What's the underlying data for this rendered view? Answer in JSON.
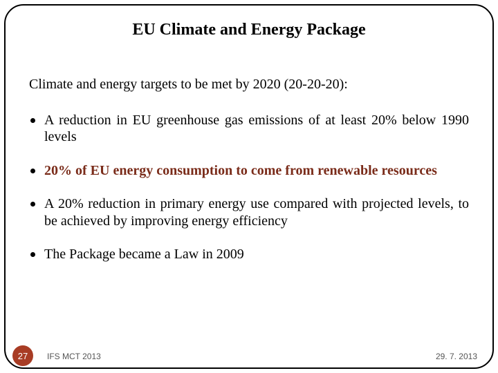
{
  "title": "EU Climate and Energy Package",
  "intro": "Climate and energy targets to be met by 2020 (20-20-20):",
  "bullets": [
    {
      "text": "A reduction in EU greenhouse gas emissions of at least 20% below 1990 levels",
      "emphasis": false
    },
    {
      "text": "20% of EU energy consumption to come from renewable resources",
      "emphasis": true
    },
    {
      "text": "A 20% reduction in primary energy use compared with projected levels, to be achieved by improving energy efficiency",
      "emphasis": false
    },
    {
      "text": "The Package became a Law in 2009",
      "emphasis": false
    }
  ],
  "footer": {
    "page": "27",
    "left": "IFS MCT 2013",
    "right": "29. 7. 2013"
  },
  "style": {
    "accent_color": "#a83c24",
    "emphasis_color": "#7a2c1a",
    "text_color": "#000000",
    "border_color": "#000000",
    "background": "#ffffff",
    "title_fontsize": 24,
    "body_fontsize": 20,
    "footer_fontsize": 12,
    "border_radius": 28
  }
}
